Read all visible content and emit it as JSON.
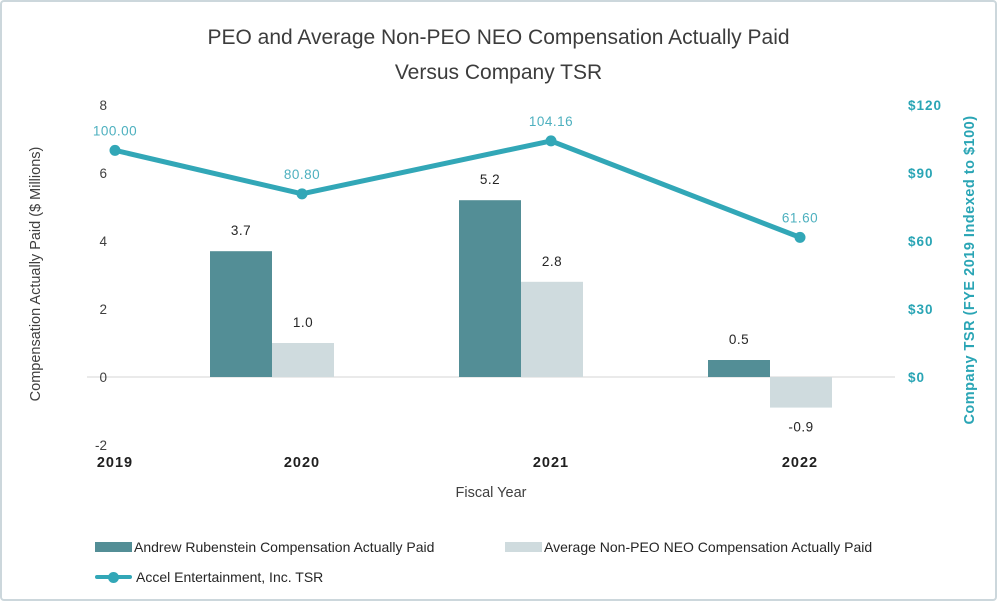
{
  "chart_data": {
    "type": "combo-bar-line",
    "title_line1": "PEO and Average Non-PEO NEO Compensation Actually Paid",
    "title_line2": "Versus Company TSR",
    "categories": [
      "2019",
      "2020",
      "2021",
      "2022"
    ],
    "xlabel": "Fiscal Year",
    "grid": "zero-line-only",
    "legend_position": "bottom-left",
    "left_axis": {
      "label": "Compensation Actually Paid ($ Millions)",
      "ticks": [
        "8",
        "6",
        "4",
        "2",
        "0",
        "-2"
      ],
      "tick_values": [
        8,
        6,
        4,
        2,
        0,
        -2
      ],
      "range": [
        -2,
        8
      ]
    },
    "right_axis": {
      "label": "Company TSR (FYE 2019 Indexed to $100)",
      "ticks": [
        "$120",
        "$90",
        "$60",
        "$30",
        "$0"
      ],
      "tick_values": [
        120,
        90,
        60,
        30,
        0
      ],
      "range": [
        0,
        120
      ],
      "color": "#2aa5b5"
    },
    "series": [
      {
        "name": "Andrew Rubenstein Compensation Actually Paid",
        "type": "bar",
        "axis": "left",
        "color": "#538e96",
        "values": [
          null,
          3.7,
          5.2,
          0.5
        ],
        "labels": [
          "",
          "3.7",
          "5.2",
          "0.5"
        ]
      },
      {
        "name": "Average Non-PEO NEO Compensation Actually Paid",
        "type": "bar",
        "axis": "left",
        "color": "#cfdbde",
        "values": [
          null,
          1.0,
          2.8,
          -0.9
        ],
        "labels": [
          "",
          "1.0",
          "2.8",
          "-0.9"
        ]
      },
      {
        "name": "Accel Entertainment, Inc. TSR",
        "type": "line",
        "axis": "right",
        "color": "#32a7b7",
        "label_color": "#4db0bf",
        "values": [
          100.0,
          80.8,
          104.16,
          61.6
        ],
        "labels": [
          "100.00",
          "80.80",
          "104.16",
          "61.60"
        ]
      }
    ]
  }
}
